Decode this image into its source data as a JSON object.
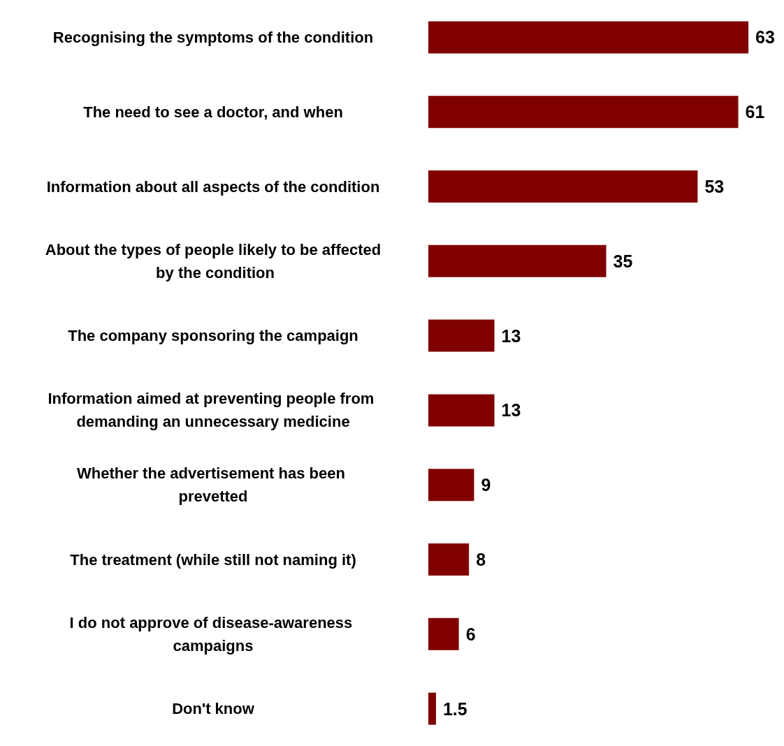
{
  "chart_data": {
    "type": "bar",
    "orientation": "horizontal",
    "data_labels": true,
    "color": "#800000",
    "categories": [
      "Recognising the symptoms of the condition",
      "The need to see a doctor, and when",
      "Information about all aspects of the condition",
      "About the types of people likely to be affected by the condition",
      "The company sponsoring the campaign",
      "Information aimed at preventing people from demanding an unnecessary medicine",
      "Whether the advertisement has been prevetted",
      "The treatment (while still not naming it)",
      "I do not approve of disease-awareness campaigns",
      "Don't know"
    ],
    "values": [
      63,
      61,
      53,
      35,
      13,
      13,
      9,
      8,
      6,
      1.5
    ]
  }
}
